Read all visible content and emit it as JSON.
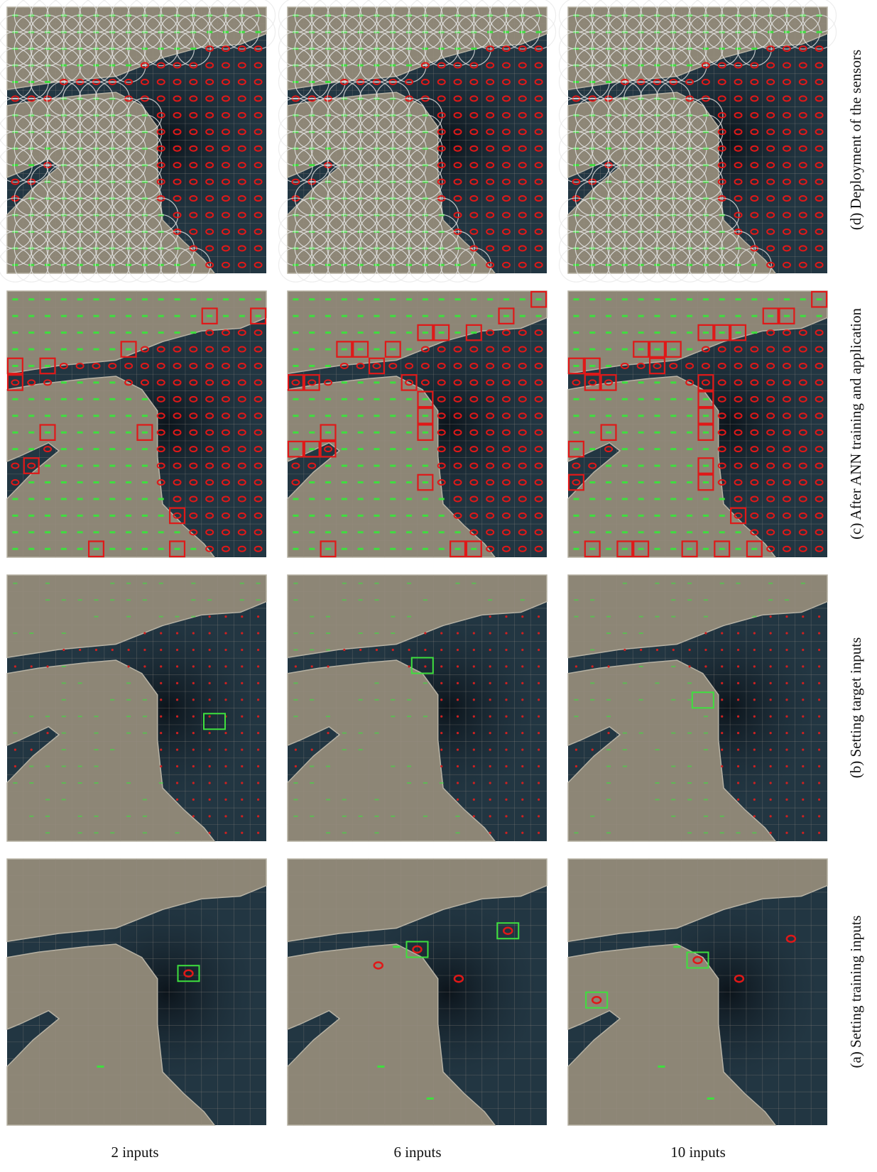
{
  "figure": {
    "columns": [
      "2 inputs",
      "6 inputs",
      "10 inputs"
    ],
    "rows": [
      "(d) Deployment of the sensors",
      "(c) After ANN training and application",
      "(b) Setting target inputs",
      "(a) Setting training inputs"
    ]
  }
}
